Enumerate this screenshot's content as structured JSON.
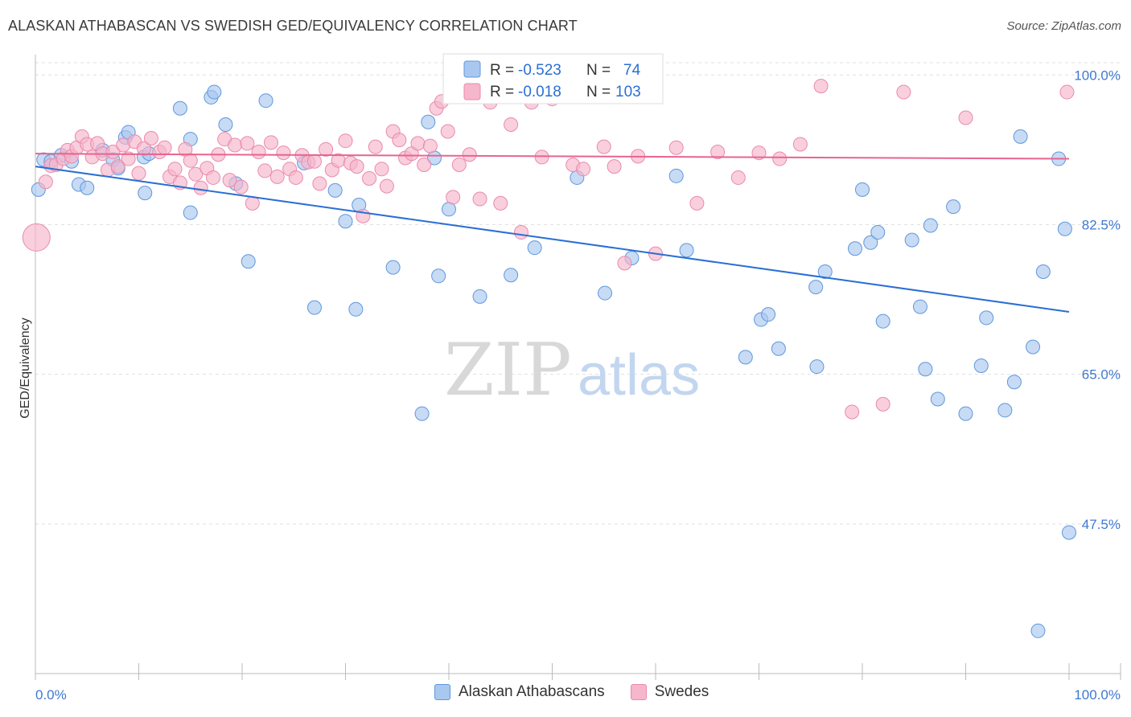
{
  "header": {
    "title": "ALASKAN ATHABASCAN VS SWEDISH GED/EQUIVALENCY CORRELATION CHART",
    "source": "Source: ZipAtlas.com"
  },
  "watermark": {
    "zip": "ZIP",
    "atlas": "atlas"
  },
  "colors": {
    "blue_fill": "#a9c8ef",
    "blue_stroke": "#5f97dc",
    "blue_line": "#2a6fd4",
    "pink_fill": "#f6b6cb",
    "pink_stroke": "#ea8aab",
    "pink_line": "#e8648e",
    "axis_label": "#3f78d0",
    "grid": "#e0e0e0"
  },
  "chart_data": {
    "type": "scatter",
    "title": "ALASKAN ATHABASCAN VS SWEDISH GED/EQUIVALENCY CORRELATION CHART",
    "xlabel": "",
    "ylabel": "GED/Equivalency",
    "xlim": [
      0,
      100
    ],
    "ylim": [
      30,
      102
    ],
    "x_tick_labels": [
      "0.0%",
      "100.0%"
    ],
    "y_ticks": [
      47.5,
      65.0,
      82.5,
      100.0
    ],
    "y_tick_labels": [
      "47.5%",
      "65.0%",
      "82.5%",
      "100.0%"
    ],
    "grid": "horizontal dashed",
    "legend": {
      "placement": "top-center",
      "entries": [
        {
          "r_label": "R =",
          "r_value": "-0.523",
          "n_label": "N =",
          "n_value": "74"
        },
        {
          "r_label": "R =",
          "r_value": "-0.018",
          "n_label": "N =",
          "n_value": "103"
        }
      ]
    },
    "series": [
      {
        "name": "Alaskan Athabascans",
        "color": "#a9c8ef",
        "trend": {
          "x": [
            0,
            100
          ],
          "y": [
            89.3,
            72.3
          ]
        },
        "points": [
          [
            0.3,
            86.6
          ],
          [
            0.8,
            90.1
          ],
          [
            1.5,
            89.9
          ],
          [
            2.5,
            90.6
          ],
          [
            3.5,
            89.9
          ],
          [
            4.2,
            87.2
          ],
          [
            5,
            86.8
          ],
          [
            6.5,
            91.2
          ],
          [
            7.5,
            90.1
          ],
          [
            8,
            89.1
          ],
          [
            8.7,
            92.7
          ],
          [
            9,
            93.3
          ],
          [
            10.5,
            90.4
          ],
          [
            10.6,
            86.2
          ],
          [
            11,
            90.8
          ],
          [
            14,
            96.1
          ],
          [
            15,
            92.5
          ],
          [
            15,
            83.9
          ],
          [
            17,
            97.4
          ],
          [
            17.3,
            98.0
          ],
          [
            18.4,
            94.2
          ],
          [
            19.4,
            87.3
          ],
          [
            20.6,
            78.2
          ],
          [
            22.3,
            97.0
          ],
          [
            26,
            89.7
          ],
          [
            27,
            72.8
          ],
          [
            29,
            86.5
          ],
          [
            30,
            82.9
          ],
          [
            31,
            72.6
          ],
          [
            31.3,
            84.8
          ],
          [
            34.6,
            77.5
          ],
          [
            38,
            94.5
          ],
          [
            38.6,
            90.3
          ],
          [
            39,
            76.5
          ],
          [
            37.4,
            60.4
          ],
          [
            40,
            84.3
          ],
          [
            43,
            74.1
          ],
          [
            46,
            76.6
          ],
          [
            48.3,
            79.8
          ],
          [
            52.4,
            88.0
          ],
          [
            55.1,
            74.5
          ],
          [
            57.7,
            78.6
          ],
          [
            62,
            88.2
          ],
          [
            63,
            79.5
          ],
          [
            68.7,
            67.0
          ],
          [
            70.2,
            71.4
          ],
          [
            70.9,
            72.0
          ],
          [
            71.9,
            68.0
          ],
          [
            75.6,
            65.9
          ],
          [
            75.5,
            75.2
          ],
          [
            76.4,
            77.0
          ],
          [
            79.3,
            79.7
          ],
          [
            80,
            86.6
          ],
          [
            80.8,
            80.4
          ],
          [
            81.5,
            81.6
          ],
          [
            82,
            71.2
          ],
          [
            84.8,
            80.7
          ],
          [
            85.6,
            72.9
          ],
          [
            86.1,
            65.6
          ],
          [
            86.6,
            82.4
          ],
          [
            87.3,
            62.1
          ],
          [
            88.8,
            84.6
          ],
          [
            90,
            60.4
          ],
          [
            91.5,
            66.0
          ],
          [
            92,
            71.6
          ],
          [
            93.8,
            60.8
          ],
          [
            94.7,
            64.1
          ],
          [
            95.3,
            92.8
          ],
          [
            96.5,
            68.2
          ],
          [
            97.5,
            77.0
          ],
          [
            99,
            90.2
          ],
          [
            99.6,
            82.0
          ],
          [
            100,
            46.5
          ],
          [
            97,
            35.0
          ]
        ]
      },
      {
        "name": "Swedes",
        "color": "#f6b6cb",
        "trend": {
          "x": [
            0,
            100
          ],
          "y": [
            90.8,
            90.2
          ]
        },
        "points": [
          [
            0.1,
            81.0
          ],
          [
            1,
            87.5
          ],
          [
            1.5,
            89.4
          ],
          [
            2,
            89.5
          ],
          [
            2.7,
            90.2
          ],
          [
            3.1,
            91.2
          ],
          [
            3.5,
            90.5
          ],
          [
            4,
            91.5
          ],
          [
            4.5,
            92.8
          ],
          [
            5,
            91.9
          ],
          [
            5.5,
            90.4
          ],
          [
            6,
            92.0
          ],
          [
            6.5,
            90.8
          ],
          [
            7,
            88.9
          ],
          [
            7.5,
            91.0
          ],
          [
            8,
            89.3
          ],
          [
            8.5,
            91.8
          ],
          [
            9,
            90.2
          ],
          [
            9.6,
            92.2
          ],
          [
            10,
            88.5
          ],
          [
            10.5,
            91.4
          ],
          [
            11.2,
            92.6
          ],
          [
            12,
            91.0
          ],
          [
            12.5,
            91.5
          ],
          [
            13,
            88.1
          ],
          [
            13.5,
            89.0
          ],
          [
            14,
            87.4
          ],
          [
            14.5,
            91.3
          ],
          [
            15,
            90.0
          ],
          [
            15.5,
            88.4
          ],
          [
            16,
            86.8
          ],
          [
            16.6,
            89.1
          ],
          [
            17.2,
            88.0
          ],
          [
            17.7,
            90.7
          ],
          [
            18.3,
            92.5
          ],
          [
            18.8,
            87.7
          ],
          [
            19.3,
            91.8
          ],
          [
            19.9,
            86.9
          ],
          [
            20.5,
            92.0
          ],
          [
            21,
            85.0
          ],
          [
            21.6,
            91.0
          ],
          [
            22.2,
            88.8
          ],
          [
            22.8,
            92.1
          ],
          [
            23.4,
            88.1
          ],
          [
            24,
            90.9
          ],
          [
            24.6,
            89.0
          ],
          [
            25.2,
            88.0
          ],
          [
            25.8,
            90.6
          ],
          [
            26.4,
            89.8
          ],
          [
            27,
            89.9
          ],
          [
            27.5,
            87.3
          ],
          [
            28.1,
            91.3
          ],
          [
            28.7,
            88.9
          ],
          [
            29.3,
            90.0
          ],
          [
            30,
            92.3
          ],
          [
            30.5,
            89.7
          ],
          [
            31.1,
            89.3
          ],
          [
            31.7,
            83.5
          ],
          [
            32.3,
            87.9
          ],
          [
            32.9,
            91.6
          ],
          [
            33.5,
            89.0
          ],
          [
            34,
            87.0
          ],
          [
            34.6,
            93.4
          ],
          [
            35.2,
            92.4
          ],
          [
            35.8,
            90.3
          ],
          [
            36.4,
            90.8
          ],
          [
            37,
            92.0
          ],
          [
            37.6,
            89.5
          ],
          [
            38.2,
            91.7
          ],
          [
            38.8,
            96.1
          ],
          [
            39.3,
            96.9
          ],
          [
            39.9,
            93.4
          ],
          [
            40.4,
            85.7
          ],
          [
            41,
            89.5
          ],
          [
            42,
            90.7
          ],
          [
            43,
            85.5
          ],
          [
            44,
            96.8
          ],
          [
            45,
            85.0
          ],
          [
            46,
            94.2
          ],
          [
            47,
            81.6
          ],
          [
            48,
            96.8
          ],
          [
            49,
            90.4
          ],
          [
            50,
            97.2
          ],
          [
            52,
            89.5
          ],
          [
            53,
            89.0
          ],
          [
            55,
            91.6
          ],
          [
            56,
            89.3
          ],
          [
            57,
            78.0
          ],
          [
            58.3,
            90.5
          ],
          [
            60,
            79.1
          ],
          [
            62,
            91.5
          ],
          [
            64,
            85.0
          ],
          [
            66,
            91.0
          ],
          [
            68,
            88.0
          ],
          [
            70,
            90.9
          ],
          [
            72,
            90.2
          ],
          [
            74,
            91.9
          ],
          [
            76,
            98.7
          ],
          [
            79,
            60.6
          ],
          [
            82,
            61.5
          ],
          [
            84,
            98.0
          ],
          [
            90,
            95.0
          ],
          [
            99.8,
            98.0
          ]
        ]
      }
    ]
  }
}
